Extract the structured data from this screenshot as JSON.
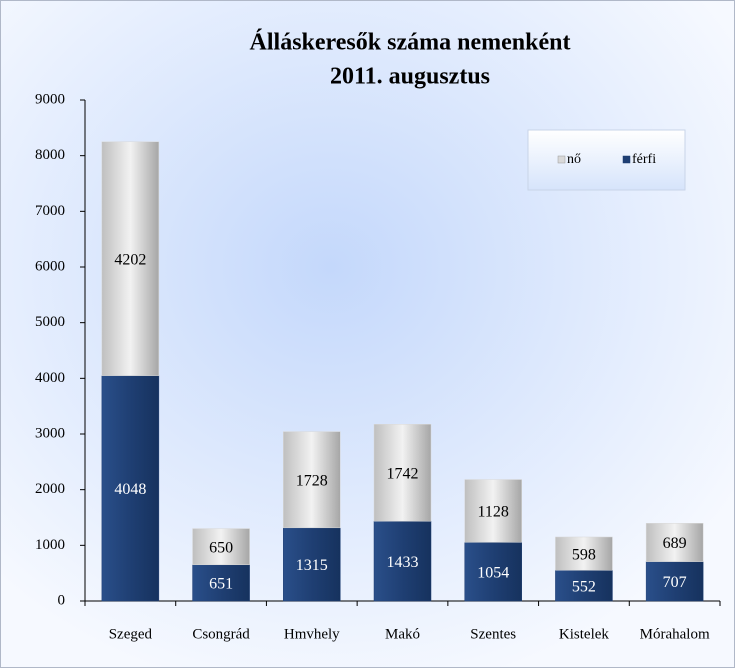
{
  "chart_data": {
    "type": "stacked_bar",
    "title": "Álláskeresők száma nemenként",
    "subtitle": "2011. augusztus",
    "categories": [
      "Szeged",
      "Csongrád",
      "Hmvhely",
      "Makó",
      "Szentes",
      "Kistelek",
      "Mórahalom"
    ],
    "series": [
      {
        "name": "férfi",
        "color": "#1f3f73",
        "values": [
          4048,
          651,
          1315,
          1433,
          1054,
          552,
          707
        ]
      },
      {
        "name": "nő",
        "color": "#d9d9d9",
        "values": [
          4202,
          650,
          1728,
          1742,
          1128,
          598,
          689
        ]
      }
    ],
    "ylim": [
      0,
      9000
    ],
    "yticks": [
      0,
      1000,
      2000,
      3000,
      4000,
      5000,
      6000,
      7000,
      8000,
      9000
    ],
    "legend": "upper right"
  }
}
